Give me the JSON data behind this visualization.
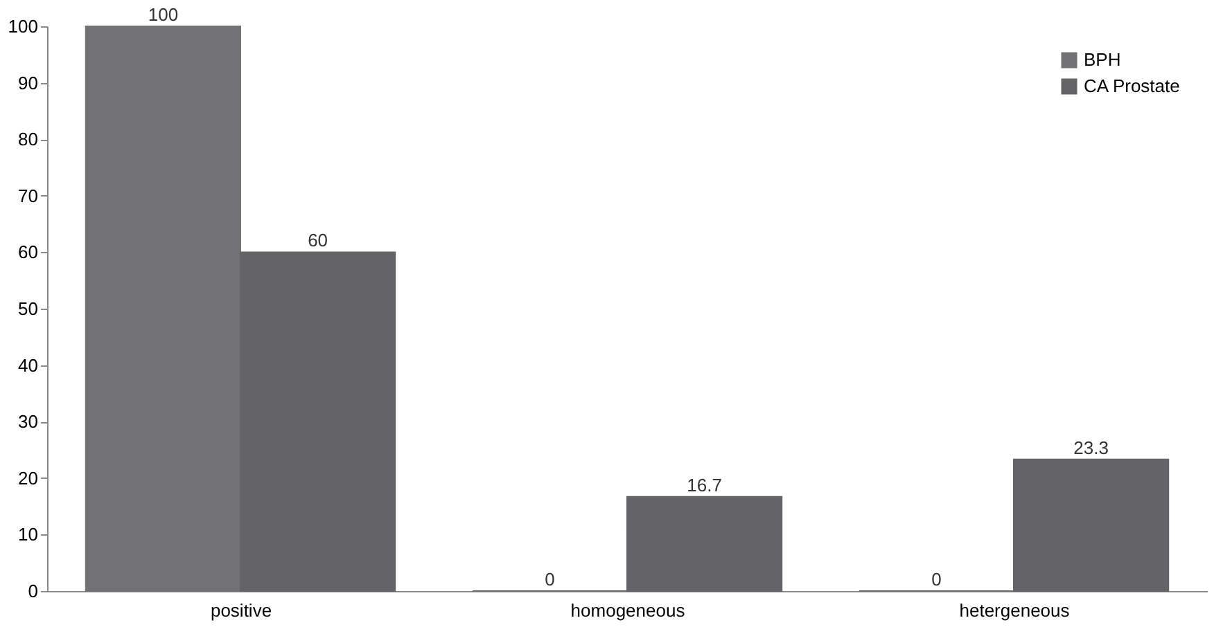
{
  "chart_data": {
    "type": "bar",
    "categories": [
      "positive",
      "homogeneous",
      "hetergeneous"
    ],
    "series": [
      {
        "name": "BPH",
        "color": "#727275",
        "values": [
          100,
          0,
          0
        ]
      },
      {
        "name": "CA Prostate",
        "color": "#646467",
        "values": [
          60,
          16.7,
          23.3
        ]
      }
    ],
    "ylim": [
      0,
      100
    ],
    "yticks": [
      0,
      10,
      20,
      30,
      40,
      50,
      60,
      70,
      80,
      90,
      100
    ],
    "grid": false,
    "legend": "top right",
    "data_labels": true
  }
}
